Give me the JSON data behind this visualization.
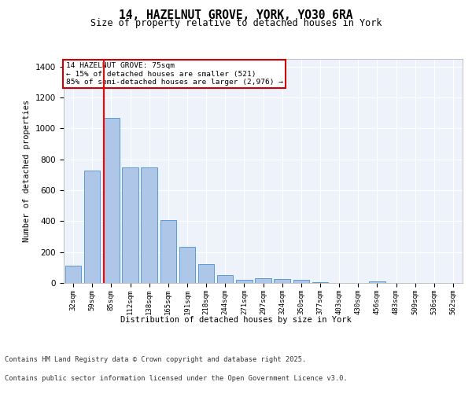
{
  "title1": "14, HAZELNUT GROVE, YORK, YO30 6RA",
  "title2": "Size of property relative to detached houses in York",
  "xlabel": "Distribution of detached houses by size in York",
  "ylabel": "Number of detached properties",
  "categories": [
    "32sqm",
    "59sqm",
    "85sqm",
    "112sqm",
    "138sqm",
    "165sqm",
    "191sqm",
    "218sqm",
    "244sqm",
    "271sqm",
    "297sqm",
    "324sqm",
    "350sqm",
    "377sqm",
    "403sqm",
    "430sqm",
    "456sqm",
    "483sqm",
    "509sqm",
    "536sqm",
    "562sqm"
  ],
  "values": [
    110,
    730,
    1070,
    750,
    750,
    405,
    235,
    120,
    50,
    20,
    30,
    25,
    20,
    5,
    0,
    0,
    10,
    0,
    0,
    0,
    0
  ],
  "bar_color": "#aec6e8",
  "bar_edge_color": "#5b9bd5",
  "annotation_line1": "14 HAZELNUT GROVE: 75sqm",
  "annotation_line2": "← 15% of detached houses are smaller (521)",
  "annotation_line3": "85% of semi-detached houses are larger (2,976) →",
  "annotation_box_color": "#cc0000",
  "ylim": [
    0,
    1450
  ],
  "red_line_index": 1.615,
  "footer1": "Contains HM Land Registry data © Crown copyright and database right 2025.",
  "footer2": "Contains public sector information licensed under the Open Government Licence v3.0."
}
